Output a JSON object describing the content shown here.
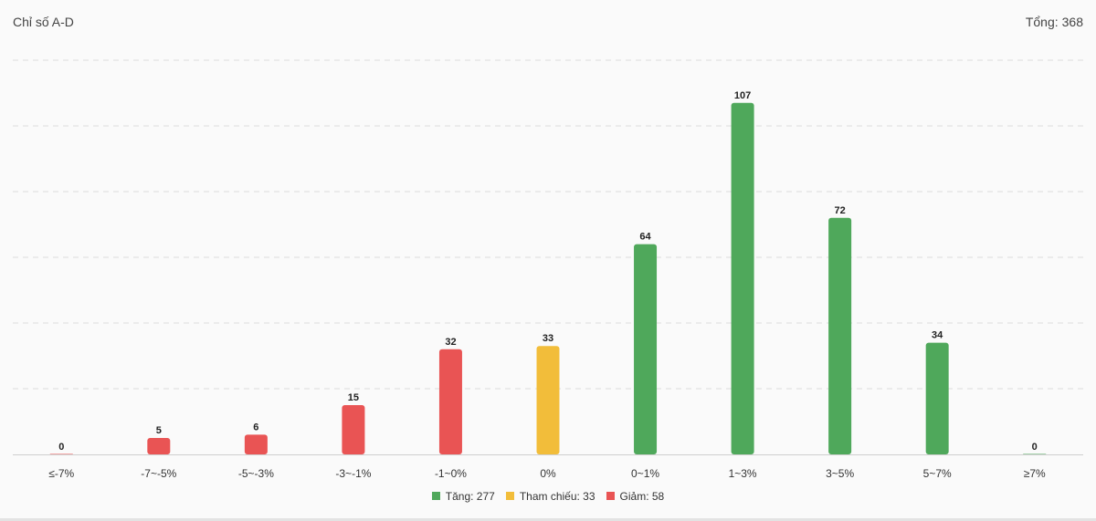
{
  "header": {
    "title": "Chỉ số A-D",
    "total_label": "Tổng:",
    "total_value": "368"
  },
  "colors": {
    "up": "#4fa85b",
    "ref": "#f2bd3a",
    "down": "#e95454",
    "grid": "#dcdcdc"
  },
  "chart_data": {
    "type": "bar",
    "title": "Chỉ số A-D",
    "xlabel": "",
    "ylabel": "",
    "ylim": [
      0,
      120
    ],
    "grid": true,
    "legend_placement": "bottom",
    "categories": [
      "≤-7%",
      "-7~-5%",
      "-5~-3%",
      "-3~-1%",
      "-1~0%",
      "0%",
      "0~1%",
      "1~3%",
      "3~5%",
      "5~7%",
      "≥7%"
    ],
    "values": [
      0,
      5,
      6,
      15,
      32,
      33,
      64,
      107,
      72,
      34,
      0
    ],
    "bar_groups": [
      "down",
      "down",
      "down",
      "down",
      "down",
      "ref",
      "up",
      "up",
      "up",
      "up",
      "up"
    ],
    "legend": [
      {
        "key": "up",
        "label": "Tăng: 277"
      },
      {
        "key": "ref",
        "label": "Tham chiếu: 33"
      },
      {
        "key": "down",
        "label": "Giảm: 58"
      }
    ]
  }
}
